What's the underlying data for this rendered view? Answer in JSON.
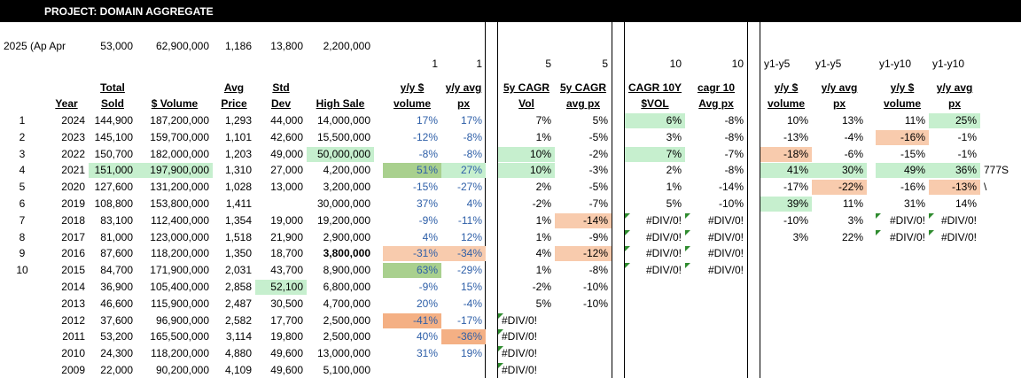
{
  "title": "PROJECT: DOMAIN AGGREGATE",
  "colors": {
    "green": "#c6efce",
    "orange_light": "#f8cbad",
    "orange_dark": "#f4b084",
    "green_dark": "#a9d08e",
    "blue_text": "#2e5fa8",
    "error_triangle": "#2e8b2e"
  },
  "summary": {
    "label": "2025 (Ap Apr",
    "sold": "53,000",
    "volume": "62,900,000",
    "price": "1,186",
    "std": "13,800",
    "high": "2,200,000"
  },
  "period_row": {
    "yy_vol": "1",
    "yy_px": "1",
    "cagr5_vol": "5",
    "cagr5_px": "5",
    "cagr10_vol": "10",
    "cagr10_px": "10",
    "y15_vol": "y1-y5",
    "y15_px": "y1-y5",
    "y110_vol": "y1-y10",
    "y110_px": "y1-y10"
  },
  "headers": {
    "year": "Year",
    "total_sold": [
      "Total",
      "Sold"
    ],
    "volume": "$ Volume",
    "avg_price": [
      "Avg",
      "Price"
    ],
    "std_dev": [
      "Std",
      "Dev"
    ],
    "high_sale": "High Sale",
    "yy_vol": [
      "y/y $",
      "volume"
    ],
    "yy_px": [
      "y/y avg",
      "px"
    ],
    "cagr5_vol": [
      "5y CAGR",
      "Vol"
    ],
    "cagr5_px": [
      "5y CAGR",
      "avg px"
    ],
    "cagr10_vol": [
      "CAGR 10Y",
      "$VOL"
    ],
    "cagr10_px": [
      "cagr 10",
      "Avg px"
    ],
    "y15_vol": [
      "y/y $",
      "volume"
    ],
    "y15_px": [
      "y/y avg",
      "px"
    ],
    "y110_vol": [
      "y/y $",
      "volume"
    ],
    "y110_px": [
      "y/y avg",
      "px"
    ]
  },
  "rows": [
    {
      "idx": "1",
      "year": "2024",
      "sold": "144,900",
      "volume": "187,200,000",
      "price": "1,293",
      "std": "44,000",
      "high": "14,000,000",
      "yy_vol": "17%",
      "yy_px": "17%",
      "c5v": "7%",
      "c5p": "5%",
      "c10v": "6%",
      "c10p": "-8%",
      "y5v": "10%",
      "y5p": "13%",
      "y10v": "11%",
      "y10p": "25%",
      "extra": ""
    },
    {
      "idx": "2",
      "year": "2023",
      "sold": "145,100",
      "volume": "159,700,000",
      "price": "1,101",
      "std": "42,600",
      "high": "15,500,000",
      "yy_vol": "-12%",
      "yy_px": "-8%",
      "c5v": "1%",
      "c5p": "-5%",
      "c10v": "3%",
      "c10p": "-8%",
      "y5v": "-13%",
      "y5p": "-4%",
      "y10v": "-16%",
      "y10p": "-1%",
      "extra": ""
    },
    {
      "idx": "3",
      "year": "2022",
      "sold": "150,700",
      "volume": "182,000,000",
      "price": "1,203",
      "std": "49,000",
      "high": "50,000,000",
      "yy_vol": "-8%",
      "yy_px": "-8%",
      "c5v": "10%",
      "c5p": "-2%",
      "c10v": "7%",
      "c10p": "-7%",
      "y5v": "-18%",
      "y5p": "-6%",
      "y10v": "-15%",
      "y10p": "-1%",
      "extra": ""
    },
    {
      "idx": "4",
      "year": "2021",
      "sold": "151,000",
      "volume": "197,900,000",
      "price": "1,310",
      "std": "27,000",
      "high": "4,200,000",
      "yy_vol": "51%",
      "yy_px": "27%",
      "c5v": "10%",
      "c5p": "-3%",
      "c10v": "2%",
      "c10p": "-8%",
      "y5v": "41%",
      "y5p": "30%",
      "y10v": "49%",
      "y10p": "36%",
      "extra": "777S"
    },
    {
      "idx": "5",
      "year": "2020",
      "sold": "127,600",
      "volume": "131,200,000",
      "price": "1,028",
      "std": "13,000",
      "high": "3,200,000",
      "yy_vol": "-15%",
      "yy_px": "-27%",
      "c5v": "2%",
      "c5p": "-5%",
      "c10v": "1%",
      "c10p": "-14%",
      "y5v": "-17%",
      "y5p": "-22%",
      "y10v": "-16%",
      "y10p": "-13%",
      "extra": "\\"
    },
    {
      "idx": "6",
      "year": "2019",
      "sold": "108,800",
      "volume": "153,800,000",
      "price": "1,411",
      "std": "",
      "high": "30,000,000",
      "yy_vol": "37%",
      "yy_px": "4%",
      "c5v": "-2%",
      "c5p": "-7%",
      "c10v": "5%",
      "c10p": "-10%",
      "y5v": "39%",
      "y5p": "11%",
      "y10v": "31%",
      "y10p": "14%",
      "extra": ""
    },
    {
      "idx": "7",
      "year": "2018",
      "sold": "83,100",
      "volume": "112,400,000",
      "price": "1,354",
      "std": "19,000",
      "high": "19,200,000",
      "yy_vol": "-9%",
      "yy_px": "-11%",
      "c5v": "1%",
      "c5p": "-14%",
      "c10v": "#DIV/0!",
      "c10p": "#DIV/0!",
      "y5v": "-10%",
      "y5p": "3%",
      "y10v": "#DIV/0!",
      "y10p": "#DIV/0!",
      "extra": ""
    },
    {
      "idx": "8",
      "year": "2017",
      "sold": "81,000",
      "volume": "123,000,000",
      "price": "1,518",
      "std": "21,900",
      "high": "2,900,000",
      "yy_vol": "4%",
      "yy_px": "12%",
      "c5v": "1%",
      "c5p": "-9%",
      "c10v": "#DIV/0!",
      "c10p": "#DIV/0!",
      "y5v": "3%",
      "y5p": "22%",
      "y10v": "#DIV/0!",
      "y10p": "#DIV/0!",
      "extra": ""
    },
    {
      "idx": "9",
      "year": "2016",
      "sold": "87,600",
      "volume": "118,200,000",
      "price": "1,350",
      "std": "18,700",
      "high": "3,800,000",
      "yy_vol": "-31%",
      "yy_px": "-34%",
      "c5v": "4%",
      "c5p": "-12%",
      "c10v": "#DIV/0!",
      "c10p": "#DIV/0!",
      "y5v": "",
      "y5p": "",
      "y10v": "",
      "y10p": "",
      "extra": ""
    },
    {
      "idx": "10",
      "year": "2015",
      "sold": "84,700",
      "volume": "171,900,000",
      "price": "2,031",
      "std": "43,700",
      "high": "8,900,000",
      "yy_vol": "63%",
      "yy_px": "-29%",
      "c5v": "1%",
      "c5p": "-8%",
      "c10v": "#DIV/0!",
      "c10p": "#DIV/0!",
      "y5v": "",
      "y5p": "",
      "y10v": "",
      "y10p": "",
      "extra": ""
    },
    {
      "idx": "",
      "year": "2014",
      "sold": "36,900",
      "volume": "105,400,000",
      "price": "2,858",
      "std": "52,100",
      "high": "6,800,000",
      "yy_vol": "-9%",
      "yy_px": "15%",
      "c5v": "-2%",
      "c5p": "-10%",
      "c10v": "",
      "c10p": "",
      "y5v": "",
      "y5p": "",
      "y10v": "",
      "y10p": "",
      "extra": ""
    },
    {
      "idx": "",
      "year": "2013",
      "sold": "46,600",
      "volume": "115,900,000",
      "price": "2,487",
      "std": "30,500",
      "high": "4,700,000",
      "yy_vol": "20%",
      "yy_px": "-4%",
      "c5v": "5%",
      "c5p": "-10%",
      "c10v": "",
      "c10p": "",
      "y5v": "",
      "y5p": "",
      "y10v": "",
      "y10p": "",
      "extra": ""
    },
    {
      "idx": "",
      "year": "2012",
      "sold": "37,600",
      "volume": "96,900,000",
      "price": "2,582",
      "std": "17,700",
      "high": "2,500,000",
      "yy_vol": "-41%",
      "yy_px": "-17%",
      "c5v": "#DIV/0!",
      "c5p": "",
      "c10v": "",
      "c10p": "",
      "y5v": "",
      "y5p": "",
      "y10v": "",
      "y10p": "",
      "extra": ""
    },
    {
      "idx": "",
      "year": "2011",
      "sold": "53,200",
      "volume": "165,500,000",
      "price": "3,114",
      "std": "19,800",
      "high": "2,500,000",
      "yy_vol": "40%",
      "yy_px": "-36%",
      "c5v": "#DIV/0!",
      "c5p": "",
      "c10v": "",
      "c10p": "",
      "y5v": "",
      "y5p": "",
      "y10v": "",
      "y10p": "",
      "extra": ""
    },
    {
      "idx": "",
      "year": "2010",
      "sold": "24,300",
      "volume": "118,200,000",
      "price": "4,880",
      "std": "49,600",
      "high": "13,000,000",
      "yy_vol": "31%",
      "yy_px": "19%",
      "c5v": "#DIV/0!",
      "c5p": "",
      "c10v": "",
      "c10p": "",
      "y5v": "",
      "y5p": "",
      "y10v": "",
      "y10p": "",
      "extra": ""
    },
    {
      "idx": "",
      "year": "2009",
      "sold": "22,000",
      "volume": "90,200,000",
      "price": "4,109",
      "std": "49,600",
      "high": "5,100,000",
      "yy_vol": "",
      "yy_px": "",
      "c5v": "#DIV/0!",
      "c5p": "",
      "c10v": "",
      "c10p": "",
      "y5v": "",
      "y5p": "",
      "y10v": "",
      "y10p": "",
      "extra": ""
    }
  ]
}
